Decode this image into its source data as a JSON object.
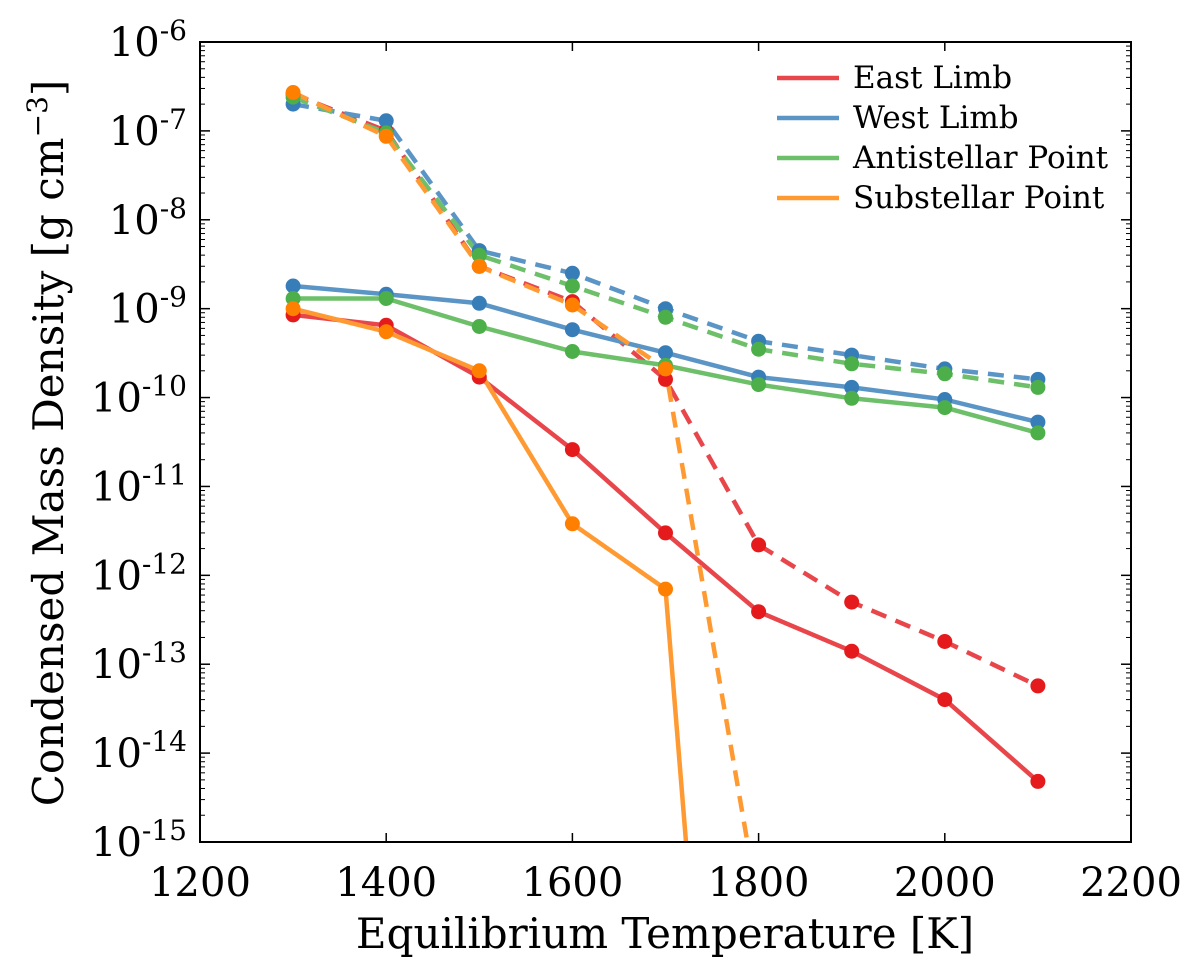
{
  "chart_data": {
    "type": "line",
    "title": "",
    "xlabel": "Equilibrium Temperature [K]",
    "ylabel_main": "Condensed Mass Density [g cm",
    "ylabel_sup": "−3",
    "ylabel_tail": "]",
    "xlim": [
      1200,
      2200
    ],
    "ylim_log10": [
      -15,
      -6
    ],
    "ytick_base": "10",
    "xticks": [
      {
        "value": 1200,
        "label": "1200"
      },
      {
        "value": 1400,
        "label": "1400"
      },
      {
        "value": 1600,
        "label": "1600"
      },
      {
        "value": 1800,
        "label": "1800"
      },
      {
        "value": 2000,
        "label": "2000"
      },
      {
        "value": 2200,
        "label": "2200"
      }
    ],
    "yticks": [
      {
        "exp": -6,
        "exp_label": "-6"
      },
      {
        "exp": -7,
        "exp_label": "-7"
      },
      {
        "exp": -8,
        "exp_label": "-8"
      },
      {
        "exp": -9,
        "exp_label": "-9"
      },
      {
        "exp": -10,
        "exp_label": "-10"
      },
      {
        "exp": -11,
        "exp_label": "-11"
      },
      {
        "exp": -12,
        "exp_label": "-12"
      },
      {
        "exp": -13,
        "exp_label": "-13"
      },
      {
        "exp": -14,
        "exp_label": "-14"
      },
      {
        "exp": -15,
        "exp_label": "-15"
      }
    ],
    "legend_position": "top-right",
    "series": [
      {
        "name": "East Limb",
        "key": "east-limb",
        "color": "#e41a1c",
        "line_color": "#e8464a",
        "solid": {
          "x": [
            1300,
            1400,
            1500,
            1600,
            1700,
            1800,
            1900,
            2000,
            2100
          ],
          "y": [
            8.5e-10,
            6.5e-10,
            1.7e-10,
            2.6e-11,
            3e-12,
            3.9e-13,
            1.4e-13,
            4e-14,
            4.8e-15
          ]
        },
        "dashed": {
          "x": [
            1300,
            1400,
            1500,
            1600,
            1700,
            1800,
            1900,
            2000,
            2100
          ],
          "y": [
            2.6e-07,
            1e-07,
            3e-09,
            1.2e-09,
            1.6e-10,
            2.2e-12,
            5e-13,
            1.8e-13,
            5.7e-14
          ]
        }
      },
      {
        "name": "West Limb",
        "key": "west-limb",
        "color": "#377eb8",
        "line_color": "#5b95c6",
        "solid": {
          "x": [
            1300,
            1400,
            1500,
            1600,
            1700,
            1800,
            1900,
            2000,
            2100
          ],
          "y": [
            1.8e-09,
            1.45e-09,
            1.15e-09,
            5.8e-10,
            3.2e-10,
            1.7e-10,
            1.3e-10,
            9.5e-11,
            5.3e-11
          ]
        },
        "dashed": {
          "x": [
            1300,
            1400,
            1500,
            1600,
            1700,
            1800,
            1900,
            2000,
            2100
          ],
          "y": [
            2e-07,
            1.3e-07,
            4.5e-09,
            2.5e-09,
            1e-09,
            4.3e-10,
            3e-10,
            2.1e-10,
            1.6e-10
          ]
        }
      },
      {
        "name": "Antistellar Point",
        "key": "antistellar-point",
        "color": "#4daf4a",
        "line_color": "#6dbf6a",
        "solid": {
          "x": [
            1300,
            1400,
            1500,
            1600,
            1700,
            1800,
            1900,
            2000,
            2100
          ],
          "y": [
            1.3e-09,
            1.3e-09,
            6.3e-10,
            3.3e-10,
            2.3e-10,
            1.4e-10,
            9.8e-11,
            7.7e-11,
            4e-11
          ]
        },
        "dashed": {
          "x": [
            1300,
            1400,
            1500,
            1600,
            1700,
            1800,
            1900,
            2000,
            2100
          ],
          "y": [
            2.4e-07,
            9.5e-08,
            4e-09,
            1.8e-09,
            8e-10,
            3.5e-10,
            2.4e-10,
            1.85e-10,
            1.3e-10
          ]
        }
      },
      {
        "name": "Substellar Point",
        "key": "substellar-point",
        "color": "#ff7f00",
        "line_color": "#ff9a33",
        "solid": {
          "x": [
            1300,
            1400,
            1500,
            1600,
            1700,
            1722
          ],
          "y": [
            1e-09,
            5.5e-10,
            2e-10,
            3.8e-12,
            7e-13,
            1e-15
          ],
          "markers": [
            true,
            true,
            true,
            true,
            true,
            false
          ]
        },
        "dashed": {
          "x": [
            1300,
            1400,
            1500,
            1600,
            1700,
            1788
          ],
          "y": [
            2.7e-07,
            8.7e-08,
            3e-09,
            1.1e-09,
            2.1e-10,
            1e-15
          ],
          "markers": [
            true,
            true,
            true,
            true,
            true,
            false
          ]
        }
      }
    ]
  }
}
